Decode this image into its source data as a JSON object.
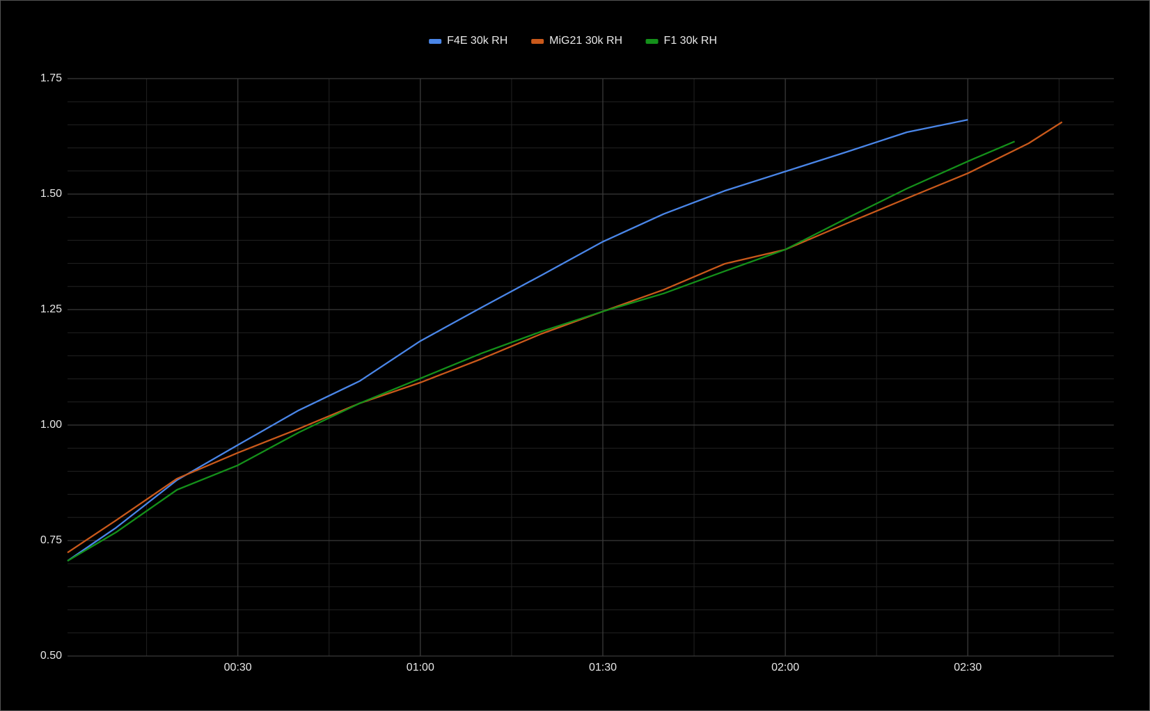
{
  "chart_data": {
    "type": "line",
    "series": [
      {
        "name": "F4E 30k RH",
        "color": "#4a86e8",
        "x": [
          2,
          10,
          20,
          30,
          40,
          50,
          60,
          70,
          80,
          90,
          100,
          110,
          120,
          130,
          140,
          150
        ],
        "values": [
          0.706,
          0.778,
          0.881,
          0.957,
          1.032,
          1.095,
          1.182,
          1.254,
          1.325,
          1.397,
          1.457,
          1.507,
          1.549,
          1.591,
          1.634,
          1.661
        ]
      },
      {
        "name": "MiG21 30k RH",
        "color": "#c9591b",
        "x": [
          2,
          10,
          20,
          30,
          40,
          50,
          60,
          70,
          80,
          90,
          100,
          110,
          120,
          130,
          140,
          150,
          160,
          165.5
        ],
        "values": [
          0.724,
          0.794,
          0.884,
          0.94,
          0.992,
          1.047,
          1.092,
          1.143,
          1.198,
          1.246,
          1.293,
          1.349,
          1.38,
          1.436,
          1.491,
          1.545,
          1.61,
          1.656
        ]
      },
      {
        "name": "F1 30k RH",
        "color": "#14901a",
        "x": [
          2,
          10,
          20,
          30,
          40,
          50,
          60,
          70,
          80,
          90,
          100,
          110,
          120,
          130,
          140,
          150,
          157.7
        ],
        "values": [
          0.706,
          0.768,
          0.86,
          0.913,
          0.984,
          1.047,
          1.101,
          1.155,
          1.203,
          1.246,
          1.285,
          1.333,
          1.38,
          1.447,
          1.512,
          1.571,
          1.614
        ]
      }
    ],
    "xlim": [
      2,
      174
    ],
    "xticks": [
      {
        "value": 30,
        "label": "00:30"
      },
      {
        "value": 60,
        "label": "01:00"
      },
      {
        "value": 90,
        "label": "01:30"
      },
      {
        "value": 120,
        "label": "02:00"
      },
      {
        "value": 150,
        "label": "02:30"
      }
    ],
    "x_minor_ticks": [
      15,
      45,
      75,
      105,
      135,
      165
    ],
    "ylim": [
      0.5,
      1.75
    ],
    "yticks": [
      {
        "value": 0.5,
        "label": "0.50"
      },
      0.75,
      {
        "value": 1,
        "label": "1.00"
      },
      1.25,
      {
        "value": 1.5,
        "label": "1.50"
      },
      1.75
    ],
    "y_minor_ticks": [
      0.55,
      0.6,
      0.65,
      0.7,
      0.8,
      0.85,
      0.9,
      0.95,
      1.05,
      1.1,
      1.15,
      1.2,
      1.3,
      1.35,
      1.4,
      1.45,
      1.55,
      1.6,
      1.65,
      1.7
    ],
    "grid": true,
    "legend": "top"
  }
}
